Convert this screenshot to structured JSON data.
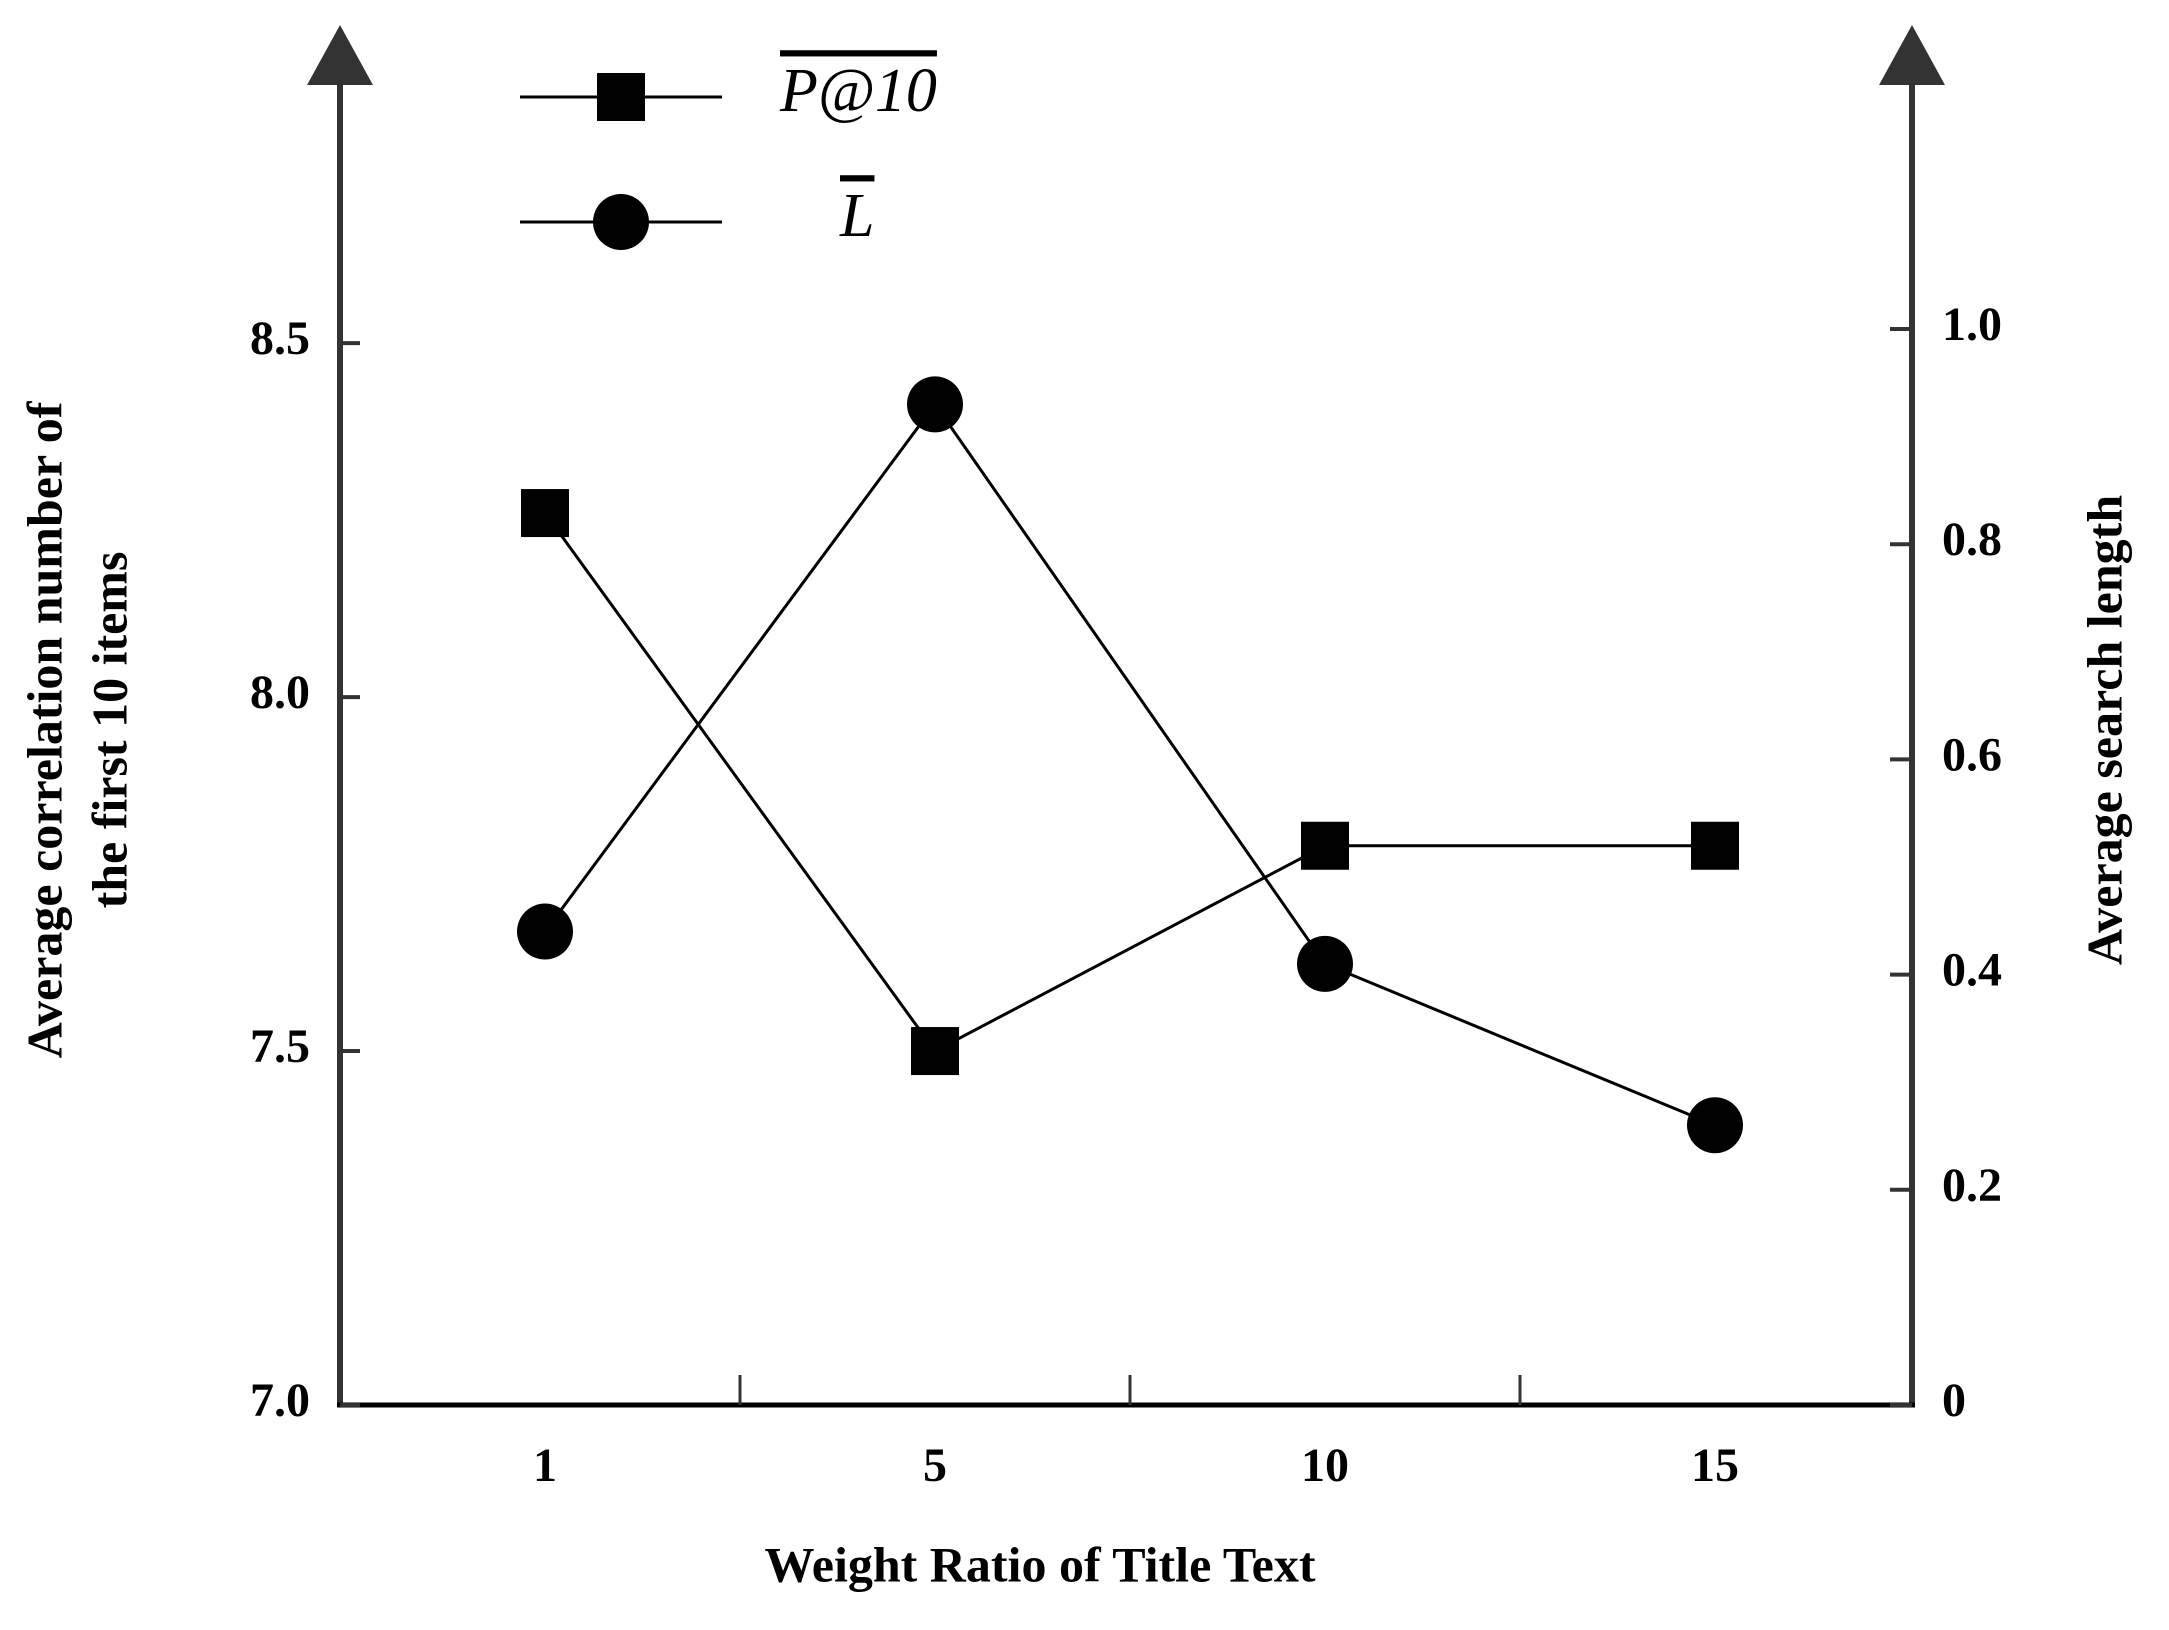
{
  "chart_data": {
    "type": "line",
    "xlabel": "Weight Ratio of Title Text",
    "ylabel": [
      "Average correlation number of",
      "the first 10 items"
    ],
    "y2label": "Average search length",
    "categories": [
      "1",
      "5",
      "10",
      "15"
    ],
    "series": [
      {
        "name": "P@10",
        "color": "#000000",
        "marker": "square",
        "values": [
          8.26,
          7.5,
          7.79,
          7.79
        ]
      },
      {
        "name": "L",
        "color": "#000000",
        "marker": "circle",
        "axis": "y2",
        "values": [
          0.44,
          0.93,
          0.41,
          0.26
        ]
      }
    ],
    "ylim": [
      7.0,
      8.9
    ],
    "yticks": [
      {
        "value": 7,
        "label": "7.0"
      },
      7.5,
      {
        "value": 8,
        "label": "8.0"
      },
      8.5
    ],
    "y2lim": [
      0,
      1.25
    ],
    "y2ticks": [
      0,
      0.2,
      0.4,
      0.6,
      0.8,
      {
        "value": 1,
        "label": "1.0"
      }
    ],
    "grid": false
  }
}
